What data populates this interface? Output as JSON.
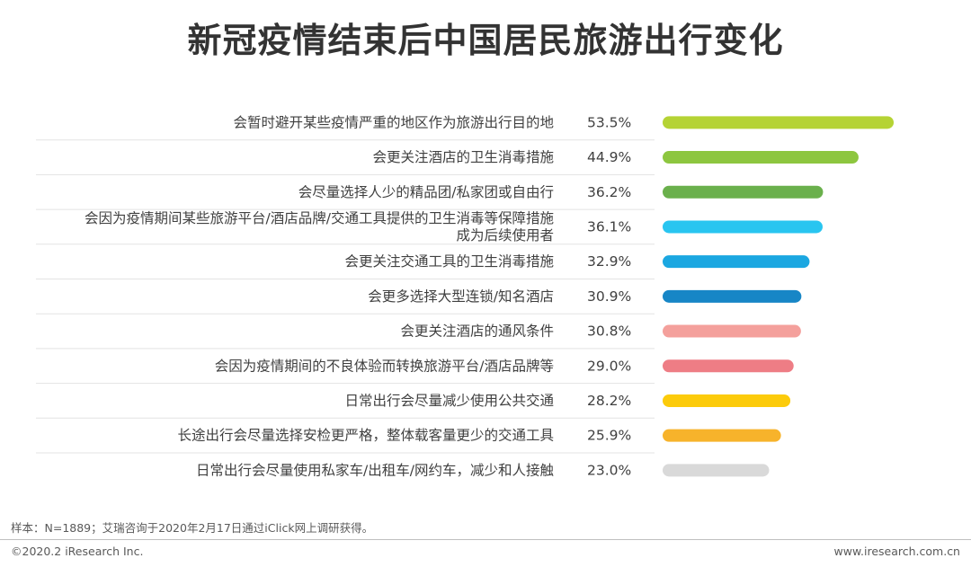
{
  "chart_data": {
    "type": "bar",
    "orientation": "horizontal",
    "title": "新冠疫情结束后中国居民旅游出行变化",
    "categories": [
      [
        "会暂时避开某些疫情严重的地区作为旅游出行目的地"
      ],
      [
        "会更关注酒店的卫生消毒措施"
      ],
      [
        "会尽量选择人少的精品团/私家团或自由行"
      ],
      [
        "会因为疫情期间某些旅游平台/酒店品牌/交通工具提供的卫生消毒等保障措施",
        "成为后续使用者"
      ],
      [
        "会更关注交通工具的卫生消毒措施"
      ],
      [
        "会更多选择大型连锁/知名酒店"
      ],
      [
        "会更关注酒店的通风条件"
      ],
      [
        "会因为疫情期间的不良体验而转换旅游平台/酒店品牌等"
      ],
      [
        "日常出行会尽量减少使用公共交通"
      ],
      [
        "长途出行会尽量选择安检更严格，整体载客量更少的交通工具"
      ],
      [
        "日常出行会尽量使用私家车/出租车/网约车，减少和人接触"
      ]
    ],
    "values": [
      53.5,
      44.9,
      36.2,
      36.1,
      32.9,
      30.9,
      30.8,
      29.0,
      28.2,
      25.9,
      23.0
    ],
    "value_labels": [
      "53.5%",
      "44.9%",
      "36.2%",
      "36.1%",
      "32.9%",
      "30.9%",
      "30.8%",
      "29.0%",
      "28.2%",
      "25.9%",
      "23.0%"
    ],
    "colors": [
      "#b5d334",
      "#8dc63f",
      "#6ab04c",
      "#29c5f0",
      "#1ba7e1",
      "#1786c6",
      "#f4a09c",
      "#ee7d85",
      "#fccb0b",
      "#f7b32b",
      "#d9d9d9"
    ],
    "xlim": [
      0,
      53.5
    ],
    "xlabel": "",
    "ylabel": "",
    "grid": false,
    "legend": "none"
  },
  "footnote": "样本：N=1889；艾瑞咨询于2020年2月17日通过iClick网上调研获得。",
  "copyright": "©2020.2 iResearch Inc.",
  "website": "www.iresearch.com.cn"
}
